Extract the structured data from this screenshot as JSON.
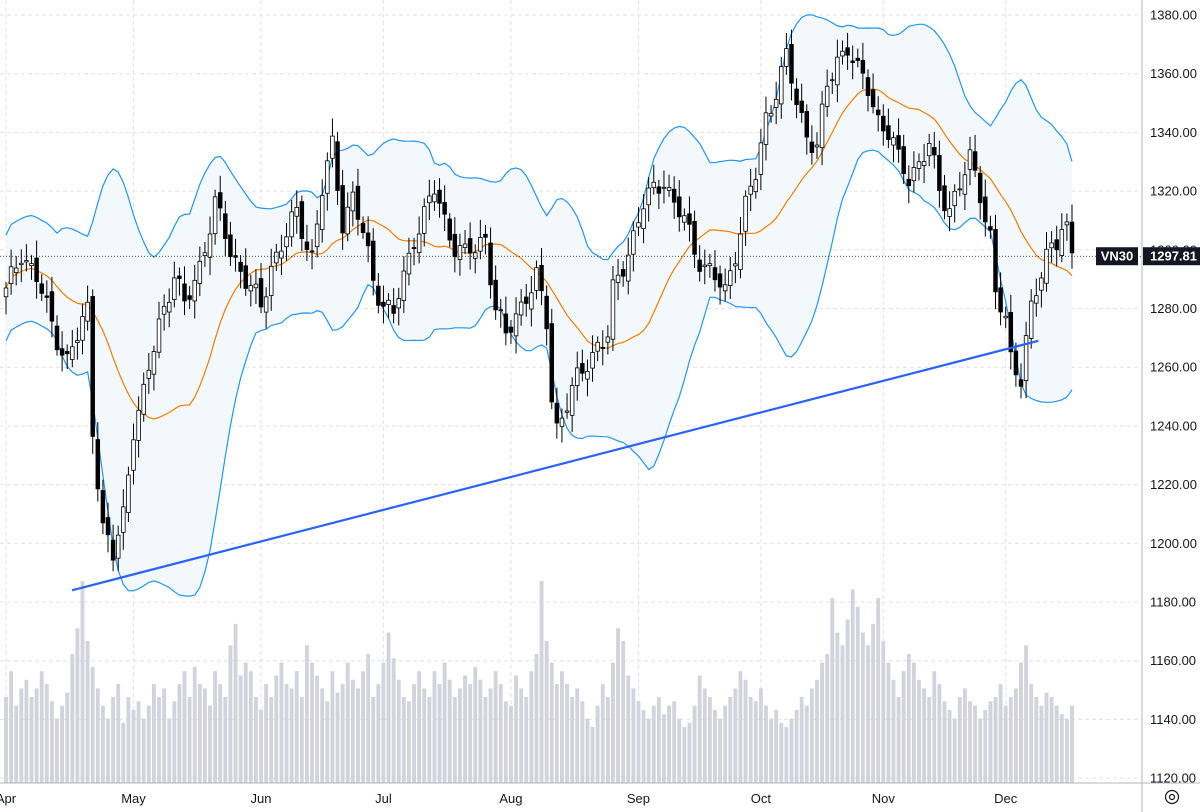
{
  "chart_data": {
    "type": "candlestick",
    "symbol": "VN30",
    "last_price": "1297.81",
    "y_axis": {
      "range": [
        1120,
        1385
      ],
      "tick_labels": [
        "1380.00",
        "1360.00",
        "1340.00",
        "1320.00",
        "1300.00",
        "1280.00",
        "1260.00",
        "1240.00",
        "1220.00",
        "1200.00",
        "1180.00",
        "1160.00",
        "1140.00",
        "1120.00"
      ]
    },
    "x_axis": {
      "tick_labels": [
        "Apr",
        "May",
        "Jun",
        "Jul",
        "Aug",
        "Sep",
        "Oct",
        "Nov",
        "Dec"
      ]
    },
    "grid": true,
    "volume_bars_relative": [
      0.4,
      0.52,
      0.36,
      0.44,
      0.48,
      0.4,
      0.44,
      0.52,
      0.46,
      0.38,
      0.3,
      0.36,
      0.42,
      0.6,
      0.72,
      0.94,
      0.66,
      0.54,
      0.44,
      0.36,
      0.3,
      0.4,
      0.46,
      0.28,
      0.4,
      0.34,
      0.38,
      0.3,
      0.36,
      0.46,
      0.4,
      0.44,
      0.3,
      0.38,
      0.46,
      0.52,
      0.4,
      0.54,
      0.46,
      0.44,
      0.36,
      0.52,
      0.46,
      0.4,
      0.64,
      0.74,
      0.5,
      0.56,
      0.52,
      0.4,
      0.34,
      0.46,
      0.4,
      0.5,
      0.56,
      0.46,
      0.44,
      0.52,
      0.4,
      0.64,
      0.56,
      0.5,
      0.44,
      0.38,
      0.52,
      0.42,
      0.46,
      0.56,
      0.48,
      0.44,
      0.52,
      0.6,
      0.4,
      0.46,
      0.56,
      0.7,
      0.58,
      0.48,
      0.4,
      0.38,
      0.46,
      0.52,
      0.44,
      0.4,
      0.52,
      0.46,
      0.56,
      0.48,
      0.4,
      0.44,
      0.5,
      0.46,
      0.54,
      0.48,
      0.4,
      0.44,
      0.52,
      0.46,
      0.38,
      0.36,
      0.5,
      0.44,
      0.4,
      0.52,
      0.6,
      0.94,
      0.66,
      0.56,
      0.46,
      0.52,
      0.46,
      0.4,
      0.44,
      0.38,
      0.3,
      0.26,
      0.36,
      0.46,
      0.4,
      0.56,
      0.72,
      0.66,
      0.5,
      0.44,
      0.38,
      0.34,
      0.3,
      0.36,
      0.4,
      0.32,
      0.36,
      0.38,
      0.3,
      0.26,
      0.28,
      0.36,
      0.5,
      0.44,
      0.4,
      0.34,
      0.3,
      0.36,
      0.4,
      0.44,
      0.52,
      0.48,
      0.4,
      0.38,
      0.44,
      0.36,
      0.3,
      0.34,
      0.28,
      0.26,
      0.3,
      0.34,
      0.4,
      0.36,
      0.44,
      0.48,
      0.56,
      0.6,
      0.86,
      0.7,
      0.64,
      0.76,
      0.9,
      0.82,
      0.7,
      0.64,
      0.74,
      0.86,
      0.66,
      0.56,
      0.48,
      0.4,
      0.52,
      0.6,
      0.56,
      0.48,
      0.44,
      0.4,
      0.52,
      0.46,
      0.38,
      0.34,
      0.3,
      0.4,
      0.44,
      0.38,
      0.36,
      0.3,
      0.34,
      0.38,
      0.4,
      0.46,
      0.36,
      0.4,
      0.44,
      0.56,
      0.64,
      0.46,
      0.4,
      0.36,
      0.42,
      0.4,
      0.36,
      0.32,
      0.3,
      0.36,
      0.3,
      0.26,
      0.28,
      0.3,
      0.26,
      0.32,
      0.28,
      0.3,
      0.26,
      0.3
    ],
    "lower_trendline": [
      [
        1,
        1184
      ],
      [
        203,
        1269
      ]
    ]
  },
  "icons": {
    "settings": "settings-gear-icon"
  },
  "colors": {
    "bull": "#ffffff",
    "bear": "#000000",
    "candle_outline": "#000000",
    "bands": "#2196f3",
    "band_fill": "#f3f8fd",
    "moving_average": "#f57c00",
    "trendline": "#2962ff",
    "volume": "#d1d4dc",
    "grid": "#e0e3eb",
    "tag_bg": "#131722"
  }
}
